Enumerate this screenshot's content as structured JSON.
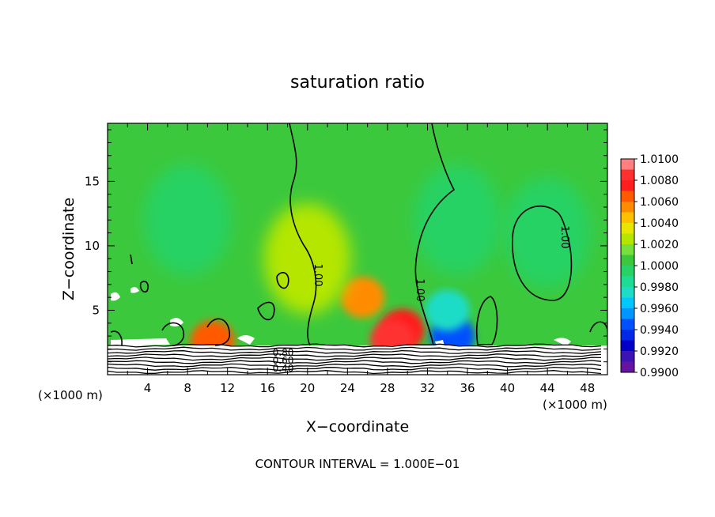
{
  "chart_data": {
    "type": "heatmap",
    "title": "saturation ratio",
    "xlabel": "X−coordinate",
    "ylabel": "Z−coordinate",
    "x_unit_left": "(×1000 m)",
    "x_unit_right": "(×1000 m)",
    "footer": "CONTOUR INTERVAL = 1.000E−01",
    "xlim": [
      0,
      50
    ],
    "ylim": [
      0,
      19.5
    ],
    "x_ticks": [
      4,
      8,
      12,
      16,
      20,
      24,
      28,
      32,
      36,
      40,
      44,
      48
    ],
    "y_ticks": [
      5,
      10,
      15
    ],
    "colorbar": {
      "ticks": [
        "1.0100",
        "1.0080",
        "1.0060",
        "1.0040",
        "1.0020",
        "1.0000",
        "0.9980",
        "0.9960",
        "0.9940",
        "0.9920",
        "0.9900"
      ],
      "bands": [
        {
          "value": 1.009,
          "color": "#ff8080"
        },
        {
          "value": 1.008,
          "color": "#ff3030"
        },
        {
          "value": 1.007,
          "color": "#ff1e1e"
        },
        {
          "value": 1.006,
          "color": "#ff5a00"
        },
        {
          "value": 1.005,
          "color": "#ff8c00"
        },
        {
          "value": 1.004,
          "color": "#ffc000"
        },
        {
          "value": 1.003,
          "color": "#e6e600"
        },
        {
          "value": 1.002,
          "color": "#b4e600"
        },
        {
          "value": 1.001,
          "color": "#78e03c"
        },
        {
          "value": 1.0,
          "color": "#3cc83c"
        },
        {
          "value": 0.999,
          "color": "#28d264"
        },
        {
          "value": 0.998,
          "color": "#1edc96"
        },
        {
          "value": 0.997,
          "color": "#1edcc8"
        },
        {
          "value": 0.996,
          "color": "#00c8ff"
        },
        {
          "value": 0.995,
          "color": "#0096ff"
        },
        {
          "value": 0.994,
          "color": "#0050ff"
        },
        {
          "value": 0.993,
          "color": "#0028e6"
        },
        {
          "value": 0.992,
          "color": "#0000c8"
        },
        {
          "value": 0.991,
          "color": "#3c14b4"
        },
        {
          "value": 0.99,
          "color": "#6414a0"
        }
      ]
    },
    "background_value": 1.0,
    "features": [
      {
        "x": 25.5,
        "z": 6.0,
        "value": 1.0045
      },
      {
        "x": 29.5,
        "z": 3.5,
        "value": 1.0065
      },
      {
        "x": 28.5,
        "z": 2.7,
        "value": 1.008
      },
      {
        "x": 34.5,
        "z": 3.0,
        "value": 0.9935
      },
      {
        "x": 34.0,
        "z": 5.0,
        "value": 0.997
      },
      {
        "x": 20.0,
        "z": 9.0,
        "value": 1.0015
      },
      {
        "x": 35.0,
        "z": 12.0,
        "value": 0.9985
      },
      {
        "x": 8.0,
        "z": 12.0,
        "value": 0.9988
      },
      {
        "x": 44.0,
        "z": 11.0,
        "value": 0.9988
      },
      {
        "x": 10.5,
        "z": 2.6,
        "value": 1.0055
      }
    ],
    "contour_labels": [
      "1.00",
      "1.00",
      "1.00",
      "0.80",
      "0.60",
      "0.40"
    ]
  }
}
